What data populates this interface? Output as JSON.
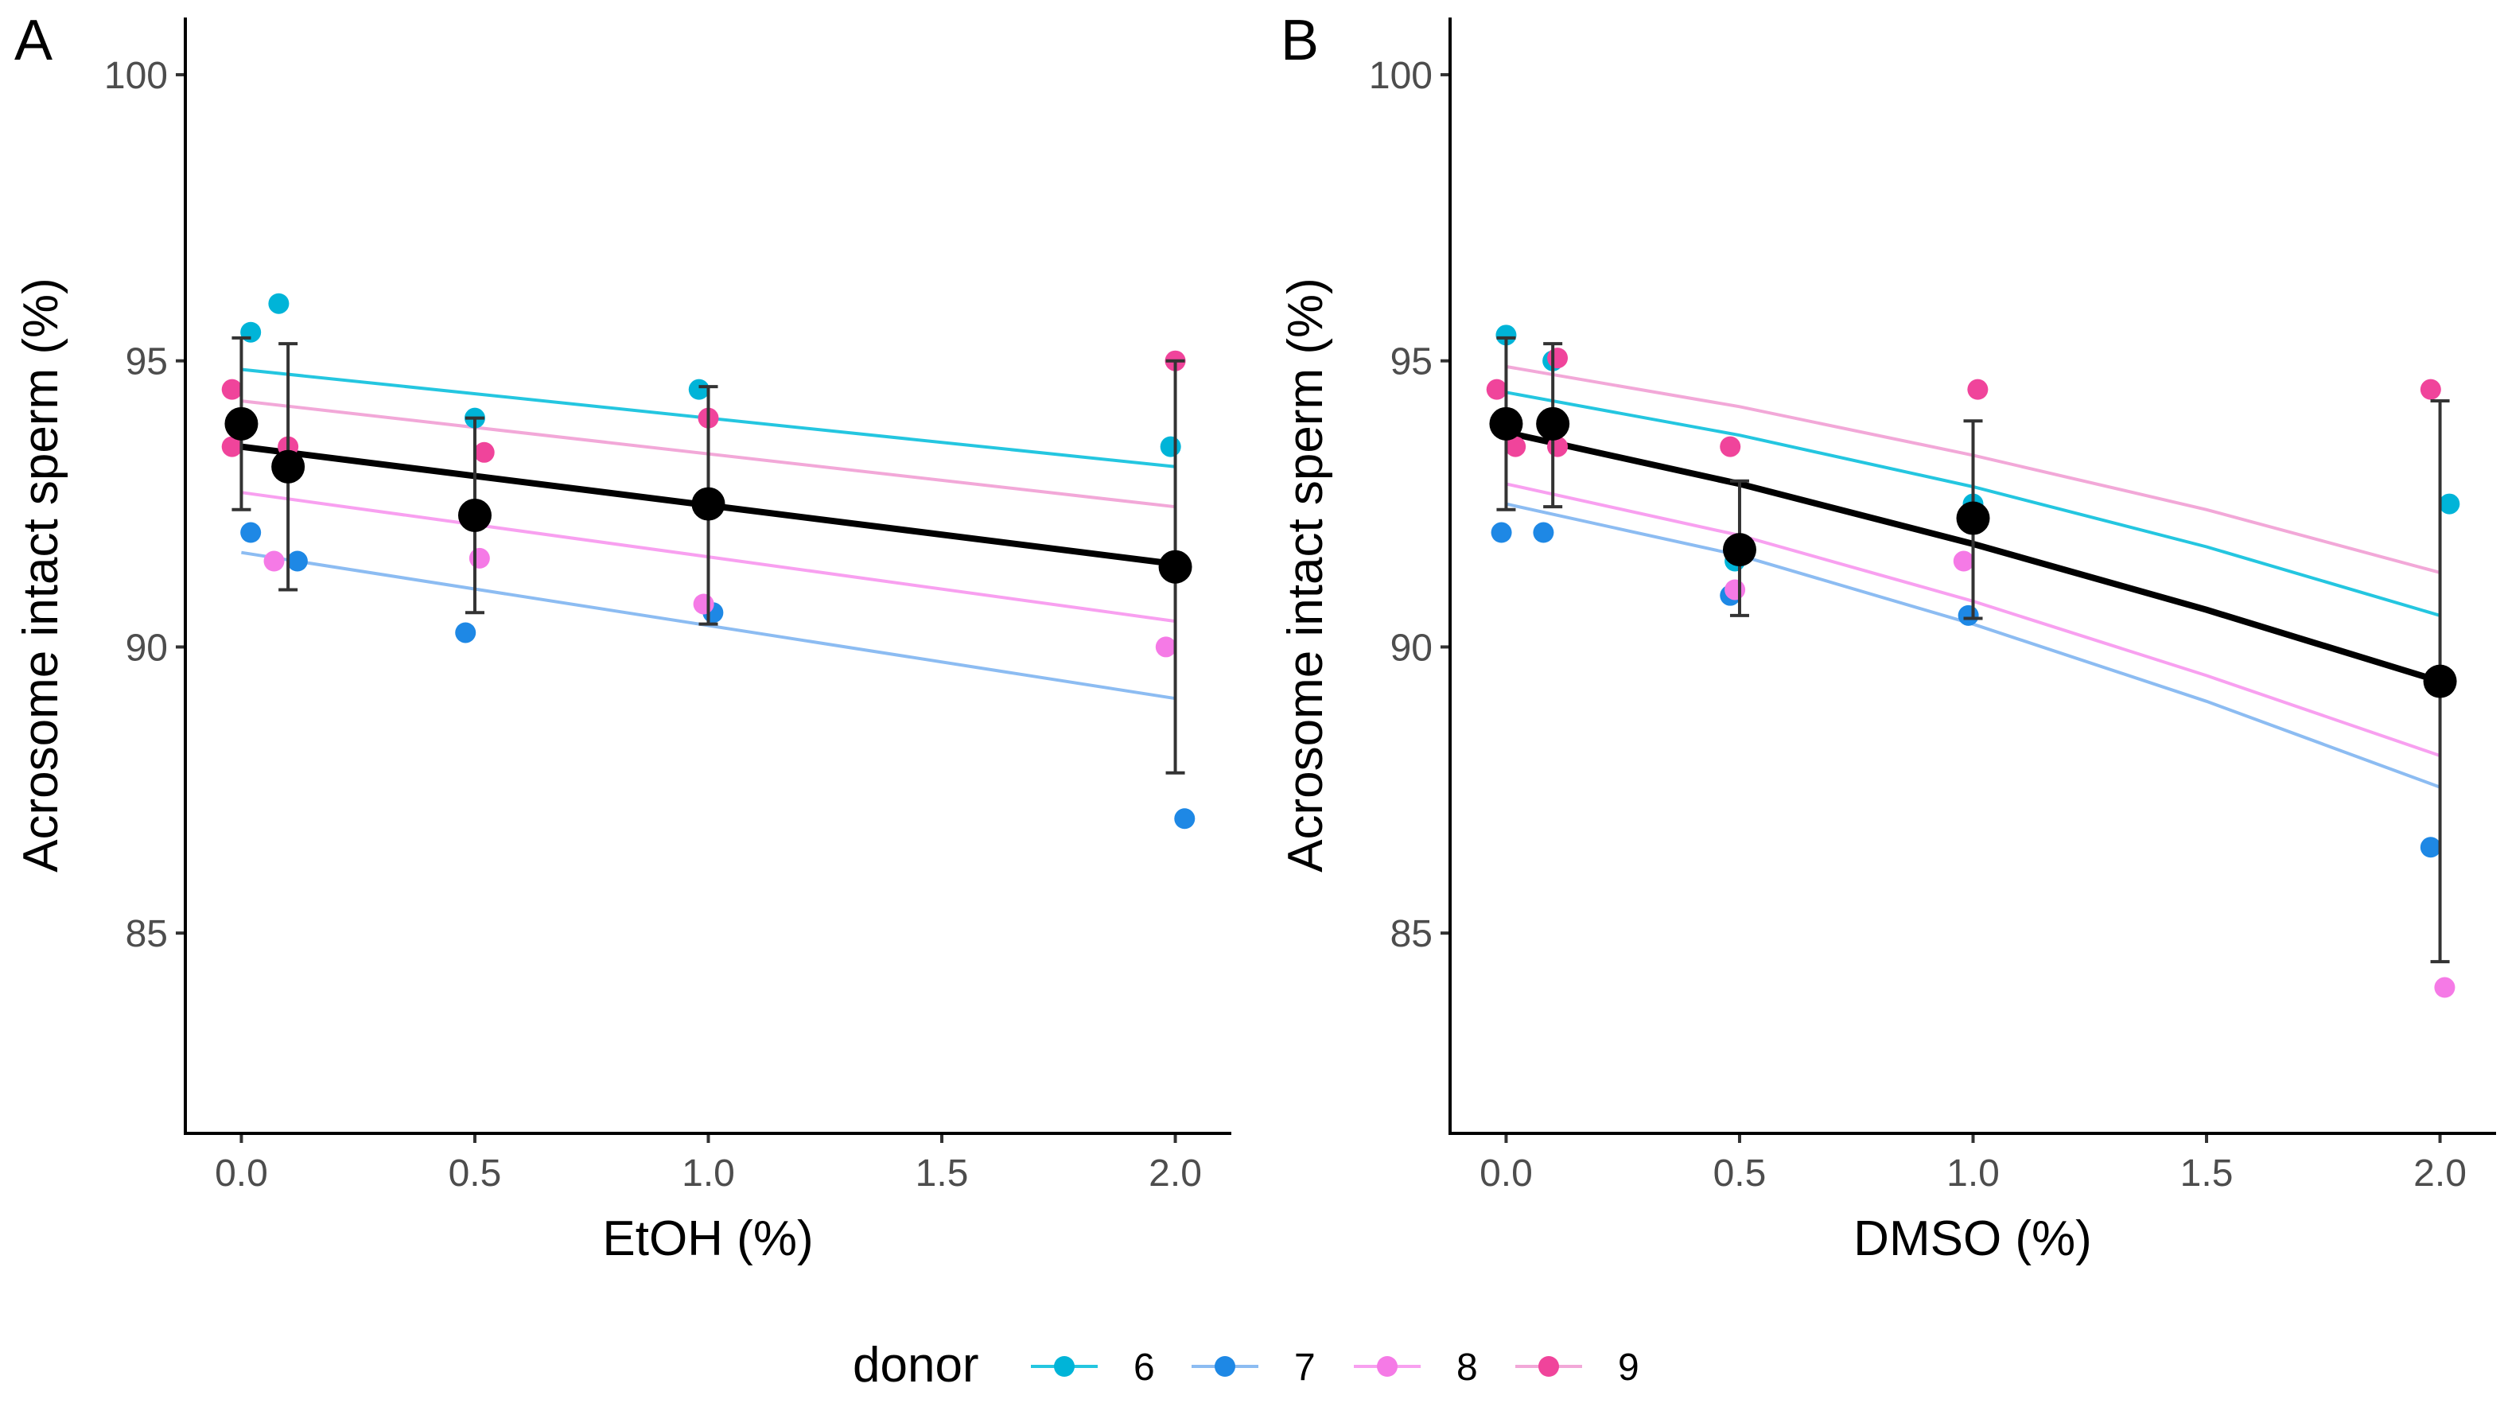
{
  "legend": {
    "title": "donor",
    "entries": [
      {
        "label": "6",
        "color": "#00B4D8"
      },
      {
        "label": "7",
        "color": "#1E88E5"
      },
      {
        "label": "8",
        "color": "#F57AE6"
      },
      {
        "label": "9",
        "color": "#F0449B"
      }
    ]
  },
  "colors": {
    "line_6": "#24C6E0",
    "line_7": "#8CBCF2",
    "line_8": "#F8A0F0",
    "line_9": "#F2A8D8",
    "mean": "#000000",
    "errorbar": "#333333"
  },
  "chart_data": [
    {
      "type": "scatter",
      "tag": "A",
      "xlabel": "EtOH (%)",
      "ylabel": "Acrosome intact sperm (%)",
      "xlim": [
        -0.12,
        2.12
      ],
      "ylim": [
        81.5,
        101.0
      ],
      "xticks": [
        0.0,
        0.5,
        1.0,
        1.5,
        2.0
      ],
      "xtick_labels": [
        "0.0",
        "0.5",
        "1.0",
        "1.5",
        "2.0"
      ],
      "yticks": [
        85,
        90,
        95,
        100
      ],
      "ytick_labels": [
        "85",
        "90",
        "95",
        "100"
      ],
      "points": [
        {
          "donor": "6",
          "x": 0.02,
          "y": 95.5
        },
        {
          "donor": "6",
          "x": 0.08,
          "y": 96.0
        },
        {
          "donor": "6",
          "x": 0.5,
          "y": 94.0
        },
        {
          "donor": "6",
          "x": 0.98,
          "y": 94.5
        },
        {
          "donor": "6",
          "x": 1.99,
          "y": 93.5
        },
        {
          "donor": "7",
          "x": 0.02,
          "y": 92.0
        },
        {
          "donor": "7",
          "x": 0.12,
          "y": 91.5
        },
        {
          "donor": "7",
          "x": 0.48,
          "y": 90.25
        },
        {
          "donor": "7",
          "x": 1.01,
          "y": 90.6
        },
        {
          "donor": "7",
          "x": 2.02,
          "y": 87.0
        },
        {
          "donor": "8",
          "x": 0.07,
          "y": 91.5
        },
        {
          "donor": "8",
          "x": 0.51,
          "y": 91.55
        },
        {
          "donor": "8",
          "x": 0.99,
          "y": 90.75
        },
        {
          "donor": "8",
          "x": 1.98,
          "y": 90.0
        },
        {
          "donor": "9",
          "x": -0.02,
          "y": 94.5
        },
        {
          "donor": "9",
          "x": -0.02,
          "y": 93.5
        },
        {
          "donor": "9",
          "x": 0.1,
          "y": 93.5
        },
        {
          "donor": "9",
          "x": 0.52,
          "y": 93.4
        },
        {
          "donor": "9",
          "x": 1.0,
          "y": 94.0
        },
        {
          "donor": "9",
          "x": 2.0,
          "y": 95.0
        }
      ],
      "donor_fits": [
        {
          "donor": "6",
          "x": [
            0.0,
            2.0
          ],
          "y": [
            94.85,
            93.15
          ]
        },
        {
          "donor": "7",
          "x": [
            0.0,
            2.0
          ],
          "y": [
            91.65,
            89.1
          ]
        },
        {
          "donor": "8",
          "x": [
            0.0,
            2.0
          ],
          "y": [
            92.7,
            90.45
          ]
        },
        {
          "donor": "9",
          "x": [
            0.0,
            2.0
          ],
          "y": [
            94.3,
            92.45
          ]
        }
      ],
      "mean_fit": {
        "x": [
          0.0,
          2.0
        ],
        "y": [
          93.5,
          91.45
        ]
      },
      "means": [
        {
          "x": 0.0,
          "y": 93.9,
          "lo": 92.4,
          "hi": 95.4
        },
        {
          "x": 0.1,
          "y": 93.15,
          "lo": 91.0,
          "hi": 95.3
        },
        {
          "x": 0.5,
          "y": 92.3,
          "lo": 90.6,
          "hi": 94.0
        },
        {
          "x": 1.0,
          "y": 92.5,
          "lo": 90.4,
          "hi": 94.55
        },
        {
          "x": 2.0,
          "y": 91.4,
          "lo": 87.8,
          "hi": 95.0
        }
      ]
    },
    {
      "type": "scatter",
      "tag": "B",
      "xlabel": "DMSO (%)",
      "ylabel": "Acrosome intact sperm (%)",
      "xlim": [
        -0.12,
        2.12
      ],
      "ylim": [
        81.5,
        101.0
      ],
      "xticks": [
        0.0,
        0.5,
        1.0,
        1.5,
        2.0
      ],
      "xtick_labels": [
        "0.0",
        "0.5",
        "1.0",
        "1.5",
        "2.0"
      ],
      "yticks": [
        85,
        90,
        95,
        100
      ],
      "ytick_labels": [
        "85",
        "90",
        "95",
        "100"
      ],
      "points": [
        {
          "donor": "6",
          "x": 0.0,
          "y": 95.45
        },
        {
          "donor": "6",
          "x": 0.1,
          "y": 95.0
        },
        {
          "donor": "6",
          "x": 0.49,
          "y": 91.5
        },
        {
          "donor": "6",
          "x": 1.0,
          "y": 92.5
        },
        {
          "donor": "6",
          "x": 2.02,
          "y": 92.5
        },
        {
          "donor": "7",
          "x": -0.01,
          "y": 92.0
        },
        {
          "donor": "7",
          "x": 0.08,
          "y": 92.0
        },
        {
          "donor": "7",
          "x": 0.48,
          "y": 90.9
        },
        {
          "donor": "7",
          "x": 0.99,
          "y": 90.55
        },
        {
          "donor": "7",
          "x": 1.98,
          "y": 86.5
        },
        {
          "donor": "8",
          "x": 0.49,
          "y": 91.0
        },
        {
          "donor": "8",
          "x": 0.98,
          "y": 91.5
        },
        {
          "donor": "8",
          "x": 2.01,
          "y": 84.05
        },
        {
          "donor": "9",
          "x": -0.02,
          "y": 94.5
        },
        {
          "donor": "9",
          "x": 0.02,
          "y": 93.5
        },
        {
          "donor": "9",
          "x": 0.11,
          "y": 95.05
        },
        {
          "donor": "9",
          "x": 0.11,
          "y": 93.5
        },
        {
          "donor": "9",
          "x": 0.48,
          "y": 93.5
        },
        {
          "donor": "9",
          "x": 1.01,
          "y": 94.5
        },
        {
          "donor": "9",
          "x": 1.98,
          "y": 94.5
        }
      ],
      "donor_fits": [
        {
          "donor": "6",
          "x": [
            0.0,
            0.5,
            1.0,
            1.5,
            2.0
          ],
          "y": [
            94.45,
            93.7,
            92.8,
            91.75,
            90.55
          ]
        },
        {
          "donor": "7",
          "x": [
            0.0,
            0.5,
            1.0,
            1.5,
            2.0
          ],
          "y": [
            92.5,
            91.6,
            90.4,
            89.05,
            87.55
          ]
        },
        {
          "donor": "8",
          "x": [
            0.0,
            0.5,
            1.0,
            1.5,
            2.0
          ],
          "y": [
            92.85,
            91.95,
            90.8,
            89.5,
            88.1
          ]
        },
        {
          "donor": "9",
          "x": [
            0.0,
            0.5,
            1.0,
            1.5,
            2.0
          ],
          "y": [
            94.9,
            94.2,
            93.35,
            92.4,
            91.3
          ]
        }
      ],
      "mean_fit": {
        "x": [
          0.0,
          0.5,
          1.0,
          1.5,
          2.0
        ],
        "y": [
          93.75,
          92.85,
          91.8,
          90.65,
          89.4
        ]
      },
      "means": [
        {
          "x": 0.0,
          "y": 93.9,
          "lo": 92.4,
          "hi": 95.4
        },
        {
          "x": 0.1,
          "y": 93.9,
          "lo": 92.45,
          "hi": 95.3
        },
        {
          "x": 0.5,
          "y": 91.7,
          "lo": 90.55,
          "hi": 92.9
        },
        {
          "x": 1.0,
          "y": 92.25,
          "lo": 90.5,
          "hi": 93.95
        },
        {
          "x": 2.0,
          "y": 89.4,
          "lo": 84.5,
          "hi": 94.3
        }
      ]
    }
  ]
}
